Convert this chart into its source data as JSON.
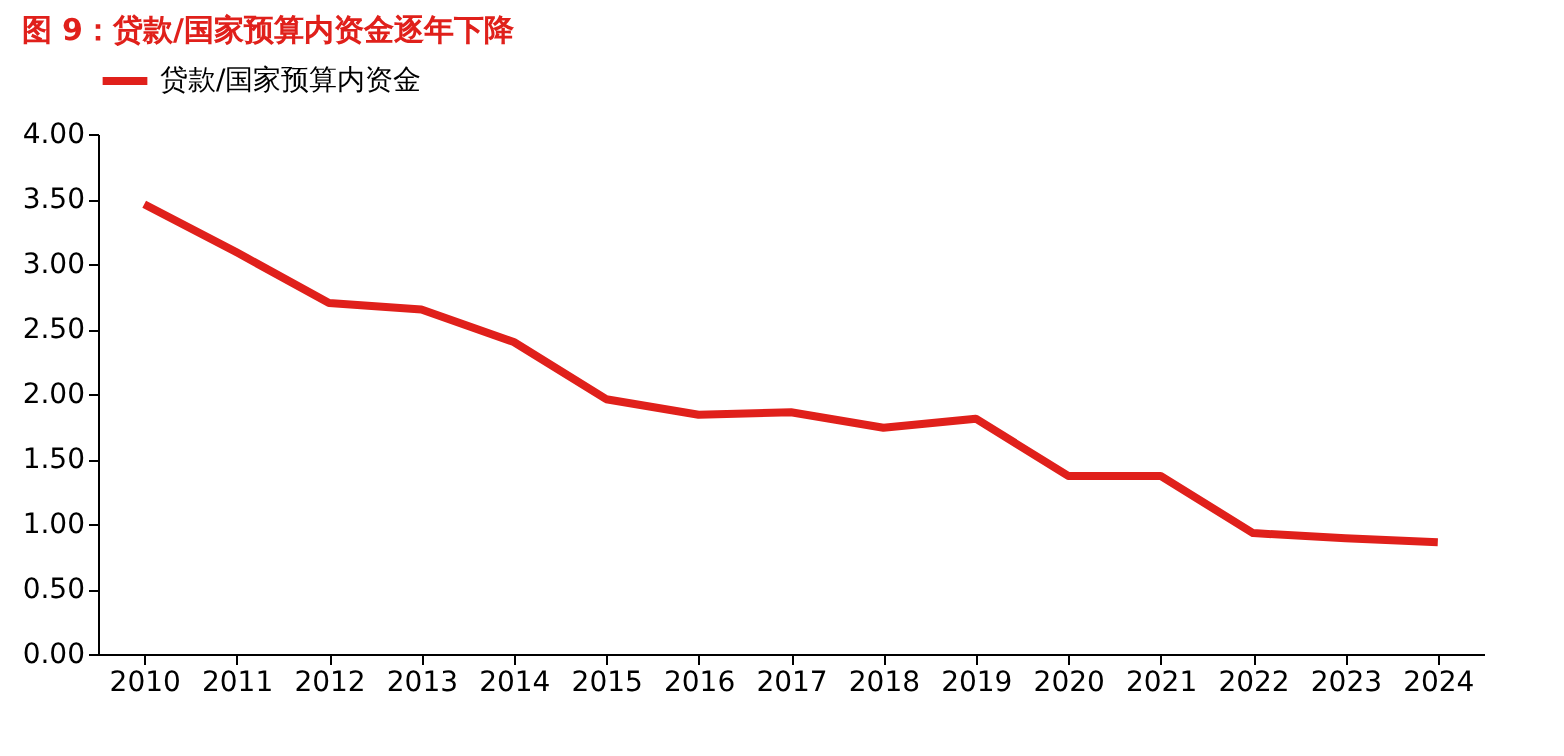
{
  "chart_data": {
    "type": "line",
    "title": "图 9：贷款/国家预算内资金逐年下降",
    "categories": [
      "2010",
      "2011",
      "2012",
      "2013",
      "2014",
      "2015",
      "2016",
      "2017",
      "2018",
      "2019",
      "2020",
      "2021",
      "2022",
      "2023",
      "2024"
    ],
    "series": [
      {
        "name": "贷款/国家预算内资金",
        "color": "#e0201b",
        "values": [
          3.46,
          3.09,
          2.7,
          2.65,
          2.4,
          1.96,
          1.84,
          1.86,
          1.74,
          1.81,
          1.37,
          1.37,
          0.93,
          0.89,
          0.86
        ]
      }
    ],
    "ylim": [
      0,
      4
    ],
    "yticks": [
      {
        "value": 0,
        "label": "0.00"
      },
      {
        "value": 0.5,
        "label": "0.50"
      },
      {
        "value": 1,
        "label": "1.00"
      },
      {
        "value": 1.5,
        "label": "1.50"
      },
      {
        "value": 2,
        "label": "2.00"
      },
      {
        "value": 2.5,
        "label": "2.50"
      },
      {
        "value": 3,
        "label": "3.00"
      },
      {
        "value": 3.5,
        "label": "3.50"
      },
      {
        "value": 4,
        "label": "4.00"
      }
    ],
    "grid": false,
    "legend": "top",
    "marker": "none",
    "line_style": "solid"
  }
}
